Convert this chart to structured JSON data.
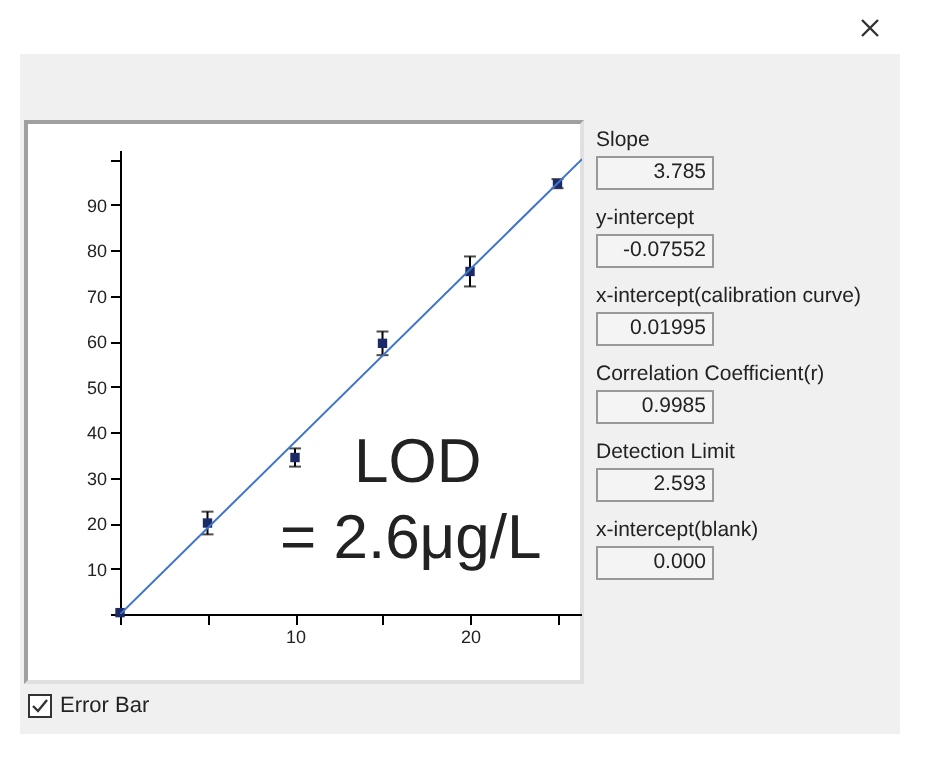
{
  "chart_data": [
    {
      "type": "scatter",
      "xlim": [
        0,
        26.4
      ],
      "ylim": [
        0,
        102
      ],
      "xticks": [
        {
          "value": 0,
          "label": null
        },
        {
          "value": 5,
          "label": null
        },
        10,
        {
          "value": 15,
          "label": null
        },
        20,
        {
          "value": 25,
          "label": null
        }
      ],
      "yticks": [
        {
          "value": 0,
          "label": null
        },
        10,
        20,
        30,
        40,
        50,
        60,
        70,
        80,
        90,
        {
          "value": 100,
          "label": null
        }
      ],
      "grid": false,
      "annotations": [
        "LOD",
        "= 2.6μg/L",
        "Error Bar"
      ],
      "series": [
        {
          "type": "scatter",
          "marker": "square",
          "color": "#1c2a66",
          "x": [
            0,
            5,
            10,
            15,
            20,
            25
          ],
          "values": [
            0.3,
            20,
            34.4,
            59.5,
            75.3,
            94.6
          ],
          "errors": [
            null,
            2.5,
            2,
            2.6,
            3.3,
            1
          ]
        },
        {
          "type": "line",
          "color": "#3f74c8",
          "x": [
            0.01995,
            26.4
          ],
          "values": [
            0,
            100
          ]
        }
      ]
    },
    {
      "type": "other",
      "annotations": [
        "Slope",
        "3.785",
        "y-intercept",
        "-0.07552",
        "x-intercept(calibration curve)",
        "0.01995",
        "Correlation Coefficient(r)",
        "0.9985",
        "Detection Limit",
        "2.593",
        "x-intercept(blank)",
        "0.000"
      ]
    }
  ]
}
